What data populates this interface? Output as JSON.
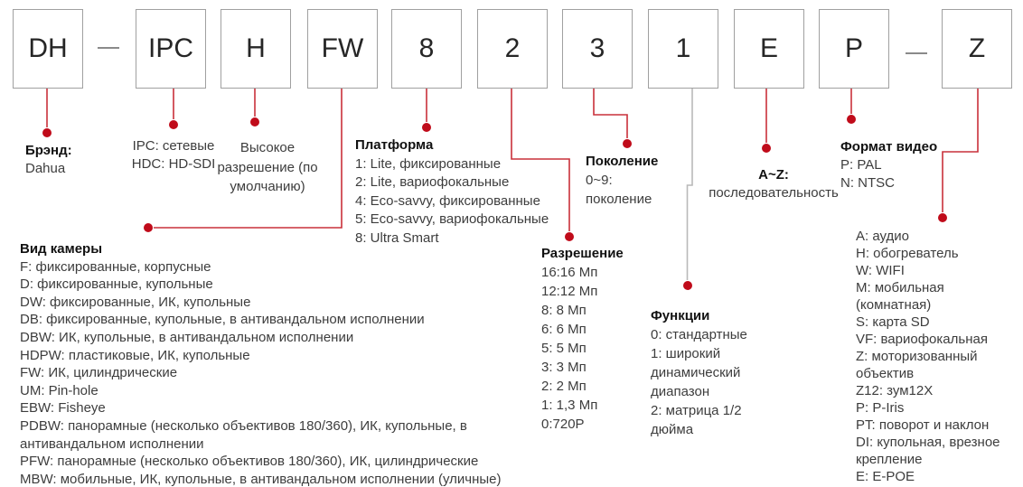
{
  "boxes": [
    "DH",
    "IPC",
    "H",
    "FW",
    "8",
    "2",
    "3",
    "1",
    "E",
    "P",
    "Z"
  ],
  "separators": [
    "—",
    "—"
  ],
  "sections": {
    "brand": {
      "heading": "Брэнд:",
      "lines": [
        "Dahua"
      ]
    },
    "camera_class": {
      "lines": [
        "IPC: сетевые",
        "HDC: HD-SDI"
      ]
    },
    "high_resolution": {
      "lines": [
        "Высокое",
        "разрешение (по",
        "умолчанию)"
      ]
    },
    "platform": {
      "heading": "Платформа",
      "lines": [
        "1: Lite, фиксированные",
        "2: Lite, вариофокальные",
        "4: Eco-savvy, фиксированные",
        "5: Eco-savvy, вариофокальные",
        "8: Ultra Smart"
      ]
    },
    "generation": {
      "heading": "Поколение",
      "lines": [
        "0~9:",
        "поколение"
      ]
    },
    "resolution": {
      "heading": "Разрешение",
      "lines": [
        "16:16 Мп",
        "12:12 Мп",
        "8: 8 Мп",
        "6: 6 Мп",
        "5: 5 Мп",
        "3: 3 Мп",
        "2: 2 Мп",
        "1: 1,3 Мп",
        "0:720P"
      ]
    },
    "functions": {
      "heading": "Функции",
      "lines": [
        "0: стандартные",
        "1: широкий",
        "динамический",
        "диапазон",
        "2: матрица 1/2",
        "дюйма"
      ]
    },
    "sequence": {
      "heading": "A~Z:",
      "lines": [
        "последовательность"
      ]
    },
    "video_format": {
      "heading": "Формат видео",
      "lines": [
        "P: PAL",
        "N: NTSC"
      ]
    },
    "suffix": {
      "lines": [
        "A: аудио",
        "H: обогреватель",
        "W: WIFI",
        "M: мобильная",
        "(комнатная)",
        "S: карта SD",
        "VF: вариофокальная",
        "Z: моторизованный",
        "объектив",
        "Z12: зум12X",
        "P: P-Iris",
        "PT: поворот и наклон",
        "DI: купольная, врезное",
        "крепление",
        "E: E-POE"
      ]
    },
    "camera_type": {
      "heading": "Вид камеры",
      "lines": [
        "F: фиксированные, корпусные",
        "D: фиксированные, купольные",
        "DW: фиксированные, ИК, купольные",
        "DB: фиксированные, купольные, в антивандальном исполнении",
        "DBW: ИК, купольные, в антивандальном исполнении",
        "HDPW: пластиковые, ИК, купольные",
        "FW: ИК, цилиндрические",
        "UM: Pin-hole",
        "EBW: Fisheye",
        "PDBW: панорамные (несколько объективов 180/360), ИК, купольные, в",
        "антивандальном исполнении",
        "PFW: панорамные (несколько объективов 180/360), ИК, цилиндрические",
        "MBW: мобильные, ИК, купольные, в антивандальном исполнении (уличные)"
      ]
    }
  },
  "colors": {
    "accent_red": "#c00b1a",
    "line_red": "#c9303a",
    "line_gray": "#b9b9b9",
    "box_border": "#a0a0a0"
  }
}
